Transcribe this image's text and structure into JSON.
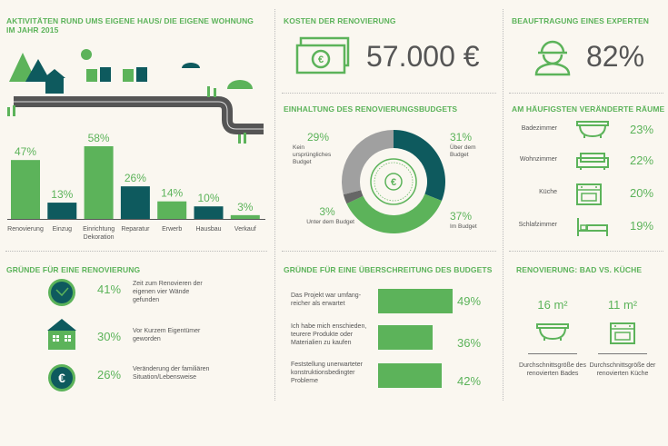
{
  "colors": {
    "green": "#5cb35a",
    "teal": "#0e5a5e",
    "gray": "#a0a0a0",
    "darkgray": "#666666",
    "background": "#faf7f0"
  },
  "activities": {
    "title_line1": "AKTIVITÄTEN RUND UMS EIGENE HAUS/ DIE EIGENE WOHNUNG",
    "title_line2": "IM JAHR 2015"
  },
  "costs": {
    "title": "KOSTEN DER RENOVIERUNG",
    "value": "57.000 €",
    "icon": "money-icon"
  },
  "expert": {
    "title": "BEAUFTRAGUNG EINES EXPERTEN",
    "value": "82%",
    "icon": "worker-icon"
  },
  "budget": {
    "title": "EINHALTUNG DES RENOVIERUNGSBUDGETS"
  },
  "rooms": {
    "title": "AM HÄUFIGSTEN VERÄNDERTE RÄUME",
    "items": [
      {
        "name": "Badezimmer",
        "value": "23%",
        "icon": "bathtub-icon"
      },
      {
        "name": "Wohnzimmer",
        "value": "22%",
        "icon": "sofa-icon"
      },
      {
        "name": "Küche",
        "value": "20%",
        "icon": "oven-icon"
      },
      {
        "name": "Schlafzimmer",
        "value": "19%",
        "icon": "bed-icon"
      }
    ]
  },
  "reasons": {
    "title": "GRÜNDE FÜR EINE RENOVIERUNG",
    "items": [
      {
        "value": "41%",
        "text": [
          "Zeit zum Renovieren der",
          "eigenen vier Wände",
          "gefunden"
        ],
        "icon": "clock-icon"
      },
      {
        "value": "30%",
        "text": [
          "Vor Kurzem Eigentümer",
          "geworden"
        ],
        "icon": "house-icon"
      },
      {
        "value": "26%",
        "text": [
          "Veränderung der familiären",
          "Situation/Lebensweise"
        ],
        "icon": "euro-icon"
      }
    ]
  },
  "overrun": {
    "title": "GRÜNDE FÜR EINE ÜBERSCHREITUNG DES BUDGETS"
  },
  "bath_kitchen": {
    "title": "RENOVIERUNG: BAD VS. KÜCHE",
    "items": [
      {
        "value": "16 m²",
        "text": [
          "Durchschnittsgröße des",
          "renovierten Bades"
        ],
        "icon": "bathtub-icon"
      },
      {
        "value": "11 m²",
        "text": [
          "Durchschnittsgröße der",
          "renovierten Küche"
        ],
        "icon": "oven-icon"
      }
    ]
  },
  "chart_data": [
    {
      "type": "bar",
      "categories": [
        "Renovierung",
        "Einzug",
        "Einrichtung Dekoration",
        "Reparatur",
        "Erwerb",
        "Hausbau",
        "Verkauf"
      ],
      "values": [
        47,
        13,
        58,
        26,
        14,
        10,
        3
      ],
      "labels": [
        "47%",
        "13%",
        "58%",
        "26%",
        "14%",
        "10%",
        "3%"
      ],
      "colors": [
        "#5cb35a",
        "#0e5a5e",
        "#5cb35a",
        "#0e5a5e",
        "#5cb35a",
        "#0e5a5e",
        "#5cb35a"
      ]
    },
    {
      "type": "pie",
      "subtype": "donut",
      "slices": [
        {
          "label": "Über dem Budget",
          "value": 31,
          "text": "31%",
          "color": "#0e5a5e"
        },
        {
          "label": "Im Budget",
          "value": 37,
          "text": "37%",
          "color": "#5cb35a"
        },
        {
          "label": "Unter dem Budget",
          "value": 3,
          "text": "3%",
          "color": "#666666"
        },
        {
          "label": "Kein ursprüngliches Budget",
          "value": 29,
          "text": "29%",
          "color": "#a0a0a0"
        }
      ]
    },
    {
      "type": "bar",
      "orientation": "horizontal",
      "categories": [
        "Das Projekt war umfang-reicher als erwartet",
        "Ich habe mich enschieden, teurere Produkte oder Materialien zu kaufen",
        "Feststellung unerwarteter konstruktionsbedingter Probleme"
      ],
      "category_lines": [
        [
          "Das Projekt war umfang-",
          "reicher als erwartet"
        ],
        [
          "Ich habe mich enschieden,",
          "teurere Produkte oder",
          "Materialien zu kaufen"
        ],
        [
          "Feststellung unerwarteter",
          "konstruktionsbedingter",
          "Probleme"
        ]
      ],
      "values": [
        49,
        36,
        42
      ],
      "labels": [
        "49%",
        "36%",
        "42%"
      ]
    }
  ]
}
